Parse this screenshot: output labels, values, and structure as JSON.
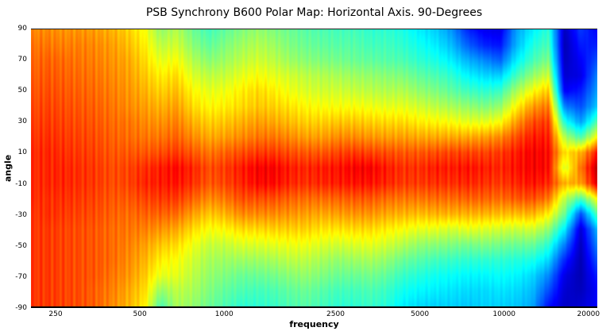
{
  "title": "PSB Synchrony B600 Polar Map: Horizontal Axis. 90-Degrees",
  "colors": {
    "background": "#ffffff",
    "axis_line": "#000000",
    "text": "#000000"
  },
  "chart_data": {
    "type": "heatmap",
    "title": "PSB Synchrony B600 Polar Map: Horizontal Axis. 90-Degrees",
    "xlabel": "frequency",
    "ylabel": "angle",
    "x_scale": "log",
    "grid": false,
    "legend": "none",
    "colormap": "jet",
    "value_units": "normalized level (0 = low / dark blue, 1 = high / dark red)",
    "x_range_hz": [
      204,
      21500
    ],
    "y_range_deg": [
      -90,
      90
    ],
    "x_ticks": [
      250,
      500,
      1000,
      2500,
      5000,
      10000,
      20000
    ],
    "x_tick_labels": [
      "250",
      "500",
      "1000",
      "2500",
      "5000",
      "10000",
      "20000"
    ],
    "y_ticks": [
      90,
      70,
      50,
      30,
      10,
      -10,
      -30,
      -50,
      -70,
      -90
    ],
    "y_tick_labels": [
      "90",
      "70",
      "50",
      "30",
      "10",
      "-10",
      "-30",
      "-50",
      "-70",
      "-90"
    ],
    "angles_deg": [
      90,
      80,
      70,
      60,
      50,
      40,
      30,
      20,
      10,
      0,
      -10,
      -20,
      -30,
      -40,
      -50,
      -60,
      -70,
      -80,
      -90
    ],
    "frequencies_hz": [
      204,
      233,
      266,
      304,
      347,
      397,
      453,
      518,
      591,
      675,
      772,
      881,
      1007,
      1150,
      1314,
      1501,
      1715,
      1959,
      2238,
      2556,
      2920,
      3336,
      3811,
      4354,
      4973,
      5681,
      6490,
      7414,
      8469,
      9675,
      11052,
      12626,
      14423,
      16476,
      18821,
      21500
    ],
    "values": [
      [
        0.74,
        0.74,
        0.73,
        0.73,
        0.72,
        0.7,
        0.67,
        0.62,
        0.52,
        0.55,
        0.48,
        0.44,
        0.47,
        0.5,
        0.52,
        0.5,
        0.48,
        0.46,
        0.45,
        0.44,
        0.44,
        0.42,
        0.42,
        0.4,
        0.36,
        0.33,
        0.27,
        0.16,
        0.11,
        0.1,
        0.28,
        0.36,
        0.42,
        0.06,
        0.18,
        0.12
      ],
      [
        0.76,
        0.76,
        0.75,
        0.75,
        0.74,
        0.72,
        0.69,
        0.64,
        0.56,
        0.58,
        0.51,
        0.47,
        0.5,
        0.53,
        0.55,
        0.53,
        0.5,
        0.48,
        0.47,
        0.46,
        0.46,
        0.44,
        0.44,
        0.42,
        0.39,
        0.36,
        0.31,
        0.22,
        0.16,
        0.14,
        0.3,
        0.4,
        0.45,
        0.05,
        0.15,
        0.15
      ],
      [
        0.77,
        0.78,
        0.77,
        0.76,
        0.75,
        0.73,
        0.71,
        0.66,
        0.6,
        0.62,
        0.55,
        0.51,
        0.53,
        0.56,
        0.58,
        0.56,
        0.53,
        0.51,
        0.5,
        0.49,
        0.48,
        0.47,
        0.46,
        0.45,
        0.42,
        0.4,
        0.36,
        0.3,
        0.26,
        0.22,
        0.36,
        0.44,
        0.5,
        0.06,
        0.12,
        0.2
      ],
      [
        0.78,
        0.79,
        0.78,
        0.77,
        0.76,
        0.74,
        0.72,
        0.68,
        0.64,
        0.66,
        0.59,
        0.56,
        0.57,
        0.6,
        0.62,
        0.6,
        0.58,
        0.56,
        0.55,
        0.54,
        0.53,
        0.52,
        0.51,
        0.5,
        0.47,
        0.45,
        0.42,
        0.37,
        0.34,
        0.33,
        0.44,
        0.52,
        0.58,
        0.08,
        0.1,
        0.25
      ],
      [
        0.79,
        0.8,
        0.79,
        0.78,
        0.77,
        0.75,
        0.73,
        0.7,
        0.67,
        0.69,
        0.63,
        0.6,
        0.61,
        0.64,
        0.66,
        0.64,
        0.61,
        0.59,
        0.58,
        0.58,
        0.57,
        0.56,
        0.55,
        0.55,
        0.52,
        0.5,
        0.47,
        0.44,
        0.42,
        0.43,
        0.54,
        0.62,
        0.68,
        0.12,
        0.15,
        0.28
      ],
      [
        0.8,
        0.81,
        0.8,
        0.79,
        0.78,
        0.76,
        0.74,
        0.72,
        0.7,
        0.72,
        0.66,
        0.63,
        0.64,
        0.66,
        0.68,
        0.67,
        0.65,
        0.63,
        0.62,
        0.62,
        0.62,
        0.61,
        0.6,
        0.6,
        0.58,
        0.56,
        0.54,
        0.52,
        0.5,
        0.52,
        0.63,
        0.72,
        0.76,
        0.25,
        0.2,
        0.32
      ],
      [
        0.81,
        0.82,
        0.81,
        0.8,
        0.79,
        0.77,
        0.76,
        0.74,
        0.73,
        0.75,
        0.7,
        0.67,
        0.68,
        0.7,
        0.72,
        0.71,
        0.69,
        0.67,
        0.67,
        0.68,
        0.68,
        0.67,
        0.66,
        0.66,
        0.64,
        0.63,
        0.62,
        0.6,
        0.6,
        0.62,
        0.72,
        0.8,
        0.82,
        0.4,
        0.28,
        0.45
      ],
      [
        0.82,
        0.83,
        0.82,
        0.81,
        0.8,
        0.78,
        0.77,
        0.76,
        0.76,
        0.78,
        0.74,
        0.71,
        0.72,
        0.74,
        0.76,
        0.76,
        0.74,
        0.72,
        0.72,
        0.74,
        0.74,
        0.73,
        0.72,
        0.72,
        0.71,
        0.71,
        0.71,
        0.71,
        0.72,
        0.74,
        0.8,
        0.85,
        0.85,
        0.55,
        0.45,
        0.62
      ],
      [
        0.83,
        0.84,
        0.83,
        0.82,
        0.81,
        0.79,
        0.79,
        0.79,
        0.8,
        0.82,
        0.79,
        0.76,
        0.78,
        0.8,
        0.82,
        0.82,
        0.8,
        0.79,
        0.79,
        0.81,
        0.82,
        0.81,
        0.8,
        0.79,
        0.79,
        0.8,
        0.81,
        0.81,
        0.81,
        0.82,
        0.85,
        0.88,
        0.87,
        0.65,
        0.7,
        0.85
      ],
      [
        0.83,
        0.84,
        0.84,
        0.83,
        0.82,
        0.8,
        0.81,
        0.83,
        0.85,
        0.87,
        0.84,
        0.8,
        0.82,
        0.85,
        0.88,
        0.88,
        0.85,
        0.84,
        0.85,
        0.86,
        0.88,
        0.88,
        0.85,
        0.83,
        0.83,
        0.85,
        0.85,
        0.86,
        0.85,
        0.84,
        0.86,
        0.88,
        0.87,
        0.58,
        0.76,
        0.93
      ],
      [
        0.83,
        0.84,
        0.84,
        0.83,
        0.82,
        0.8,
        0.81,
        0.84,
        0.85,
        0.86,
        0.83,
        0.79,
        0.81,
        0.84,
        0.87,
        0.87,
        0.84,
        0.83,
        0.84,
        0.85,
        0.86,
        0.86,
        0.84,
        0.82,
        0.82,
        0.83,
        0.83,
        0.84,
        0.83,
        0.82,
        0.84,
        0.86,
        0.84,
        0.7,
        0.72,
        0.9
      ],
      [
        0.83,
        0.83,
        0.83,
        0.82,
        0.81,
        0.79,
        0.79,
        0.81,
        0.82,
        0.82,
        0.78,
        0.74,
        0.76,
        0.8,
        0.8,
        0.8,
        0.78,
        0.77,
        0.77,
        0.78,
        0.79,
        0.79,
        0.77,
        0.76,
        0.76,
        0.77,
        0.77,
        0.78,
        0.78,
        0.77,
        0.79,
        0.8,
        0.76,
        0.56,
        0.45,
        0.62
      ],
      [
        0.82,
        0.83,
        0.82,
        0.81,
        0.8,
        0.78,
        0.77,
        0.78,
        0.78,
        0.77,
        0.72,
        0.68,
        0.7,
        0.74,
        0.74,
        0.74,
        0.73,
        0.72,
        0.71,
        0.72,
        0.73,
        0.73,
        0.71,
        0.7,
        0.69,
        0.7,
        0.7,
        0.7,
        0.7,
        0.69,
        0.69,
        0.7,
        0.64,
        0.48,
        0.2,
        0.45
      ],
      [
        0.82,
        0.82,
        0.81,
        0.8,
        0.79,
        0.77,
        0.76,
        0.75,
        0.73,
        0.71,
        0.66,
        0.62,
        0.63,
        0.66,
        0.66,
        0.67,
        0.67,
        0.67,
        0.65,
        0.65,
        0.66,
        0.66,
        0.64,
        0.62,
        0.6,
        0.6,
        0.58,
        0.6,
        0.59,
        0.58,
        0.57,
        0.58,
        0.52,
        0.36,
        0.08,
        0.3
      ],
      [
        0.82,
        0.82,
        0.81,
        0.8,
        0.79,
        0.77,
        0.75,
        0.72,
        0.68,
        0.66,
        0.61,
        0.57,
        0.57,
        0.59,
        0.59,
        0.6,
        0.61,
        0.61,
        0.59,
        0.58,
        0.59,
        0.6,
        0.58,
        0.55,
        0.52,
        0.51,
        0.5,
        0.49,
        0.5,
        0.49,
        0.48,
        0.48,
        0.42,
        0.25,
        0.06,
        0.25
      ],
      [
        0.82,
        0.82,
        0.81,
        0.8,
        0.79,
        0.77,
        0.74,
        0.7,
        0.64,
        0.62,
        0.58,
        0.54,
        0.53,
        0.53,
        0.53,
        0.54,
        0.56,
        0.56,
        0.54,
        0.52,
        0.53,
        0.54,
        0.52,
        0.48,
        0.46,
        0.44,
        0.43,
        0.42,
        0.42,
        0.42,
        0.41,
        0.4,
        0.34,
        0.16,
        0.05,
        0.2
      ],
      [
        0.82,
        0.82,
        0.81,
        0.8,
        0.79,
        0.76,
        0.73,
        0.68,
        0.6,
        0.6,
        0.56,
        0.52,
        0.5,
        0.48,
        0.48,
        0.49,
        0.51,
        0.52,
        0.5,
        0.48,
        0.48,
        0.49,
        0.47,
        0.43,
        0.41,
        0.39,
        0.38,
        0.37,
        0.37,
        0.38,
        0.37,
        0.34,
        0.26,
        0.1,
        0.05,
        0.15
      ],
      [
        0.82,
        0.82,
        0.81,
        0.8,
        0.78,
        0.75,
        0.71,
        0.66,
        0.52,
        0.56,
        0.54,
        0.5,
        0.47,
        0.45,
        0.44,
        0.45,
        0.47,
        0.48,
        0.46,
        0.44,
        0.44,
        0.45,
        0.43,
        0.39,
        0.37,
        0.36,
        0.35,
        0.34,
        0.34,
        0.35,
        0.34,
        0.31,
        0.2,
        0.08,
        0.06,
        0.12
      ],
      [
        0.82,
        0.82,
        0.81,
        0.8,
        0.78,
        0.74,
        0.7,
        0.64,
        0.45,
        0.54,
        0.52,
        0.48,
        0.45,
        0.42,
        0.42,
        0.43,
        0.45,
        0.46,
        0.44,
        0.42,
        0.42,
        0.43,
        0.41,
        0.36,
        0.34,
        0.33,
        0.33,
        0.32,
        0.33,
        0.33,
        0.32,
        0.29,
        0.14,
        0.07,
        0.08,
        0.12
      ]
    ]
  }
}
